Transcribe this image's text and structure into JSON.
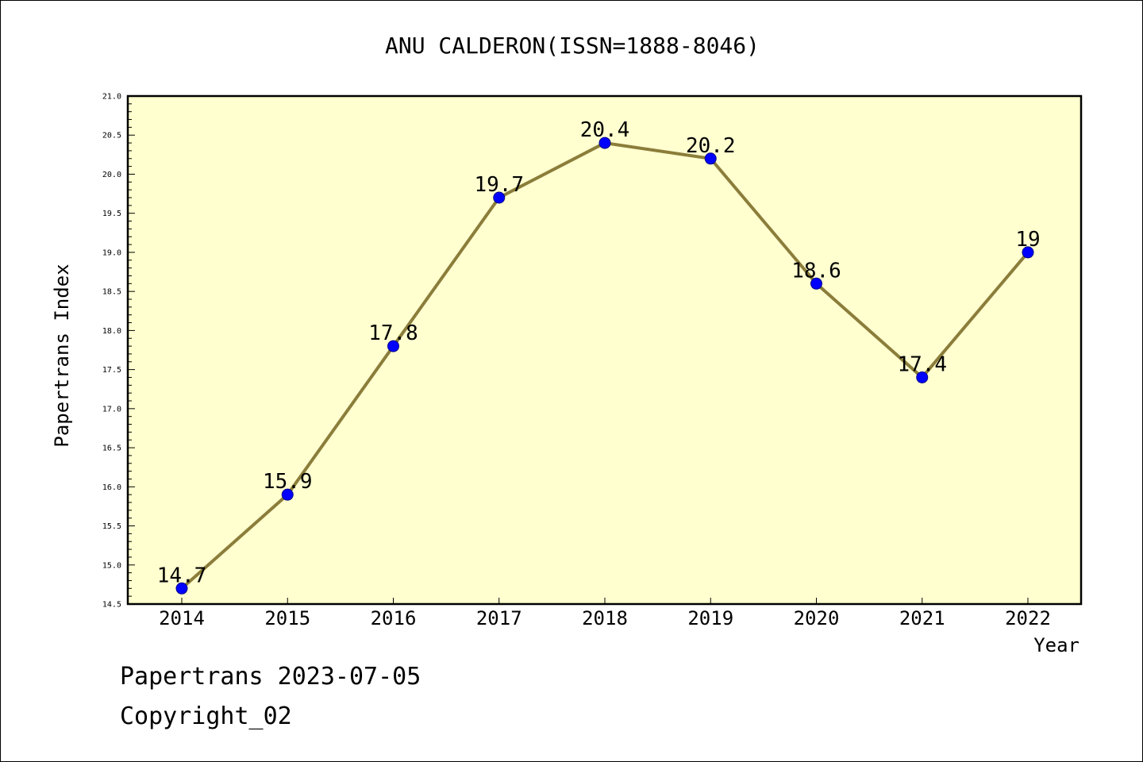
{
  "chart_data": {
    "type": "line",
    "title": "ANU CALDERON(ISSN=1888-8046)",
    "xlabel": "Year",
    "ylabel": "Papertrans Index",
    "x": [
      "2014",
      "2015",
      "2016",
      "2017",
      "2018",
      "2019",
      "2020",
      "2021",
      "2022"
    ],
    "series": [
      {
        "values": [
          14.7,
          15.9,
          17.8,
          19.7,
          20.4,
          20.2,
          18.6,
          17.4,
          19
        ],
        "labels": [
          "14.7",
          "15.9",
          "17.8",
          "19.7",
          "20.4",
          "20.2",
          "18.6",
          "17.4",
          "19"
        ]
      }
    ],
    "ylim": [
      14.5,
      21.0
    ],
    "yticks": [
      "14.5",
      "15.0",
      "15.5",
      "16.0",
      "16.5",
      "17.0",
      "17.5",
      "18.0",
      "18.5",
      "19.0",
      "19.5",
      "20.0",
      "20.5",
      "21.0"
    ],
    "grid": false,
    "colors": {
      "plot_background": "#ffffd0",
      "line": "#8b7d3a",
      "marker": "#0000ff"
    }
  },
  "footer": {
    "line1": "Papertrans 2023-07-05",
    "line2": "Copyright_02"
  }
}
